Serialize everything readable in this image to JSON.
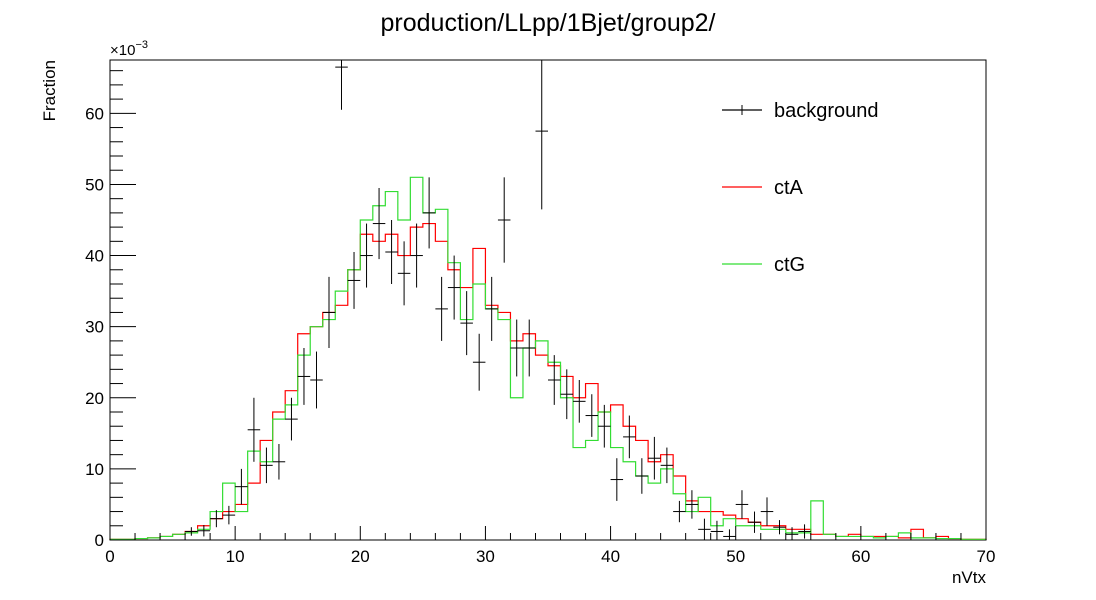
{
  "chart_data": {
    "type": "histogram",
    "title": "production/LLpp/1Bjet/group2/",
    "xlabel": "nVtx",
    "ylabel": "Fraction",
    "y_multiplier_label": "×10",
    "y_multiplier_exponent": "−3",
    "xlim": [
      0,
      70
    ],
    "ylim": [
      0,
      67.5
    ],
    "bin_width": 1,
    "x_ticks": [
      0,
      10,
      20,
      30,
      40,
      50,
      60,
      70
    ],
    "x_tick_labels": [
      "0",
      "10",
      "20",
      "30",
      "40",
      "50",
      "60",
      "70"
    ],
    "y_ticks": [
      0,
      10,
      20,
      30,
      40,
      50,
      60
    ],
    "y_tick_labels": [
      "0",
      "10",
      "20",
      "30",
      "40",
      "50",
      "60"
    ],
    "grid": false,
    "legend_position": "top-right",
    "series": [
      {
        "name": "background",
        "color": "#000000",
        "style": "error-bars",
        "values": [
          0,
          0,
          0,
          0,
          0,
          0,
          1.2,
          1.3,
          3,
          3.5,
          7.5,
          15.5,
          10.5,
          11,
          17,
          23,
          22.5,
          32,
          66.5,
          36.5,
          40,
          44.5,
          40.5,
          37.5,
          40,
          46,
          32.5,
          35.5,
          30.5,
          25,
          32.5,
          45,
          27,
          27,
          57.5,
          22.5,
          20.5,
          19.5,
          17.5,
          16,
          8.5,
          14.5,
          9,
          11.5,
          10.5,
          4,
          5,
          1.5,
          1.2,
          0.5,
          5,
          2.5,
          4,
          1.8,
          0.8,
          1.2,
          0,
          0,
          0,
          0,
          0,
          0,
          0,
          0,
          0,
          0,
          0,
          0,
          0,
          0
        ],
        "errors": [
          0,
          0,
          0,
          0,
          0,
          0,
          0.6,
          0.8,
          1.2,
          1.3,
          2.5,
          4.5,
          2.5,
          2.5,
          3,
          4,
          4,
          5,
          6,
          4,
          4.5,
          5,
          4.5,
          4.5,
          4.5,
          5,
          4.5,
          4.5,
          4.5,
          4,
          4.5,
          6,
          4,
          4,
          11,
          3.5,
          3.5,
          3,
          3,
          3,
          3,
          3,
          2.5,
          3,
          2.5,
          1.5,
          2,
          1.5,
          1.5,
          1,
          2,
          1.5,
          2,
          1,
          1,
          1,
          0,
          0,
          0,
          0,
          0,
          0,
          0,
          0,
          0,
          0,
          0,
          0,
          0,
          0
        ]
      },
      {
        "name": "ctA",
        "color": "#ff0000",
        "style": "step",
        "values": [
          0.1,
          0.1,
          0.2,
          0.3,
          0.5,
          0.8,
          1.2,
          2,
          3,
          4,
          5,
          8,
          14,
          18,
          21,
          29,
          30,
          32,
          33,
          38,
          43,
          42,
          43,
          40,
          44,
          44.5,
          42,
          38,
          35.5,
          41,
          33,
          32,
          28,
          29,
          26,
          24.5,
          23,
          20,
          22,
          18,
          19,
          16,
          14,
          11,
          12,
          9,
          5.5,
          4,
          4,
          3.5,
          3,
          2.5,
          2,
          2,
          1.5,
          1.5,
          0.8,
          0.8,
          0.5,
          0.8,
          0.5,
          0.5,
          0.5,
          0.3,
          1.5,
          0.3,
          0.5,
          0.2,
          0.1,
          0.1
        ]
      },
      {
        "name": "ctG",
        "color": "#33dd33",
        "style": "step",
        "values": [
          0.1,
          0.1,
          0.2,
          0.3,
          0.5,
          0.8,
          1,
          1.5,
          4,
          8,
          4,
          12.5,
          11,
          17,
          19,
          26,
          30,
          31,
          35,
          38,
          45,
          47,
          49,
          45,
          51,
          46,
          46.5,
          39,
          31,
          36,
          32.5,
          31,
          20,
          27,
          28,
          25,
          20,
          13,
          14,
          18,
          13,
          11,
          9,
          8,
          10,
          6.5,
          4,
          6,
          2,
          3,
          2,
          2,
          1.5,
          1.5,
          1,
          1,
          5.5,
          0.8,
          0.5,
          0.5,
          0.5,
          0.3,
          0.5,
          1,
          0.3,
          0.3,
          0.2,
          0.2,
          0.1,
          0.1
        ]
      }
    ]
  }
}
